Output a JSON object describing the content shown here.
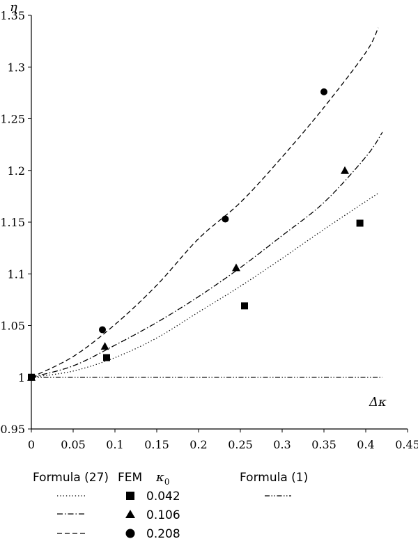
{
  "chart_data": {
    "type": "line",
    "x_axis": {
      "label": "Δκ",
      "range": [
        0,
        0.45
      ],
      "ticks": [
        "0",
        "0.05",
        "0.1",
        "0.15",
        "0.2",
        "0.25",
        "0.3",
        "0.35",
        "0.4",
        "0.45"
      ]
    },
    "y_axis": {
      "label": "η",
      "range": [
        0.95,
        1.35
      ],
      "ticks": [
        "0.95",
        "1",
        "1.05",
        "1.1",
        "1.15",
        "1.2",
        "1.25",
        "1.3",
        "1.35"
      ]
    },
    "grid": false,
    "curves": [
      {
        "source": "Formula (27)",
        "kappa0": "0.042",
        "style": "dotted",
        "x": [
          0,
          0.05,
          0.1,
          0.15,
          0.2,
          0.25,
          0.3,
          0.35,
          0.4,
          0.415
        ],
        "y": [
          1.0,
          1.006,
          1.019,
          1.038,
          1.063,
          1.088,
          1.115,
          1.143,
          1.17,
          1.178
        ]
      },
      {
        "source": "Formula (27)",
        "kappa0": "0.106",
        "style": "dashdot",
        "x": [
          0,
          0.05,
          0.1,
          0.15,
          0.2,
          0.25,
          0.3,
          0.35,
          0.4,
          0.42
        ],
        "y": [
          1.0,
          1.011,
          1.031,
          1.053,
          1.078,
          1.106,
          1.137,
          1.169,
          1.213,
          1.237
        ]
      },
      {
        "source": "Formula (27)",
        "kappa0": "0.208",
        "style": "dashed",
        "x": [
          0,
          0.05,
          0.1,
          0.15,
          0.2,
          0.25,
          0.3,
          0.35,
          0.4,
          0.415
        ],
        "y": [
          1.0,
          1.02,
          1.051,
          1.089,
          1.134,
          1.169,
          1.213,
          1.261,
          1.314,
          1.338
        ]
      },
      {
        "source": "Formula (1)",
        "style": "dashdotdot",
        "x": [
          0,
          0.42
        ],
        "y": [
          1.0,
          1.0
        ]
      }
    ],
    "fem_points": [
      {
        "kappa0": "0.042",
        "marker": "square",
        "x": [
          0,
          0.09,
          0.255,
          0.393
        ],
        "y": [
          1.0,
          1.019,
          1.069,
          1.149
        ]
      },
      {
        "kappa0": "0.106",
        "marker": "triangle",
        "x": [
          0,
          0.088,
          0.245,
          0.375
        ],
        "y": [
          1.0,
          1.03,
          1.106,
          1.2
        ]
      },
      {
        "kappa0": "0.208",
        "marker": "circle",
        "x": [
          0,
          0.085,
          0.232,
          0.35
        ],
        "y": [
          1.0,
          1.046,
          1.153,
          1.276
        ]
      }
    ],
    "legend": {
      "placement": "bottom",
      "formula27_header": "Formula (27)",
      "fem_header": "FEM",
      "kappa_header": "κ",
      "kappa_subscript": "0",
      "formula1_header": "Formula (1)",
      "rows": [
        {
          "line_style": "dotted",
          "marker": "square",
          "value": "0.042"
        },
        {
          "line_style": "dashdot",
          "marker": "triangle",
          "value": "0.106"
        },
        {
          "line_style": "dashed",
          "marker": "circle",
          "value": "0.208"
        }
      ],
      "formula1_line_style": "dashdotdot"
    }
  }
}
